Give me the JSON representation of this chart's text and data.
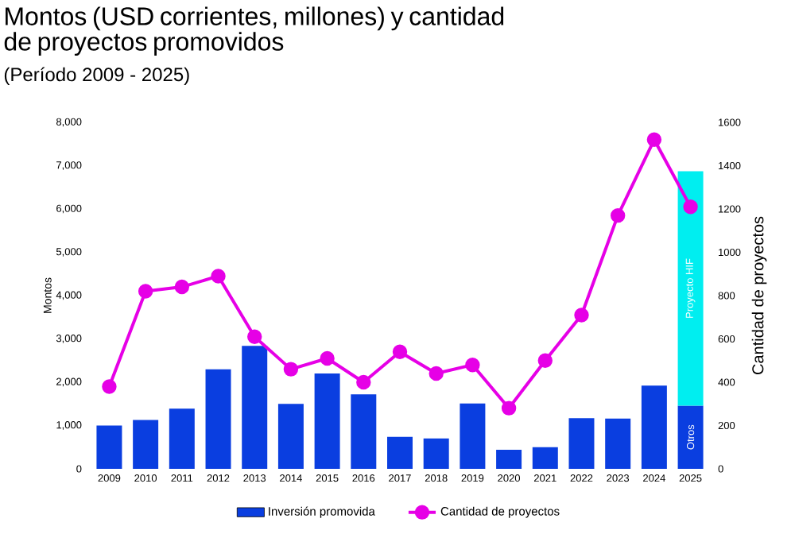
{
  "chart_data": {
    "type": "bar",
    "title": "Montos (USD corrientes, millones) y cantidad de proyectos promovidos",
    "subtitle": "(Período 2009 - 2025)",
    "ylabel": "Montos",
    "y2label": "Cantidad de proyectos",
    "categories": [
      "2009",
      "2010",
      "2011",
      "2012",
      "2013",
      "2014",
      "2015",
      "2016",
      "2017",
      "2018",
      "2019",
      "2020",
      "2021",
      "2022",
      "2023",
      "2024",
      "2025"
    ],
    "stacked": true,
    "series": [
      {
        "name": "Inversión promovida",
        "color": "#0a3ee0",
        "values": [
          1000,
          1130,
          1390,
          2300,
          2840,
          1500,
          2200,
          1720,
          740,
          700,
          1510,
          440,
          500,
          1170,
          1160,
          1920,
          1460
        ]
      },
      {
        "color": "#00eef0",
        "values": [
          null,
          null,
          null,
          null,
          null,
          null,
          null,
          null,
          null,
          null,
          null,
          null,
          null,
          null,
          null,
          null,
          5410
        ]
      },
      {
        "name": "Cantidad de proyectos",
        "type": "line",
        "axis": "y2",
        "color": "#e600e6",
        "marker": "circle",
        "values": [
          380,
          820,
          840,
          890,
          610,
          460,
          510,
          400,
          540,
          440,
          480,
          280,
          500,
          710,
          1170,
          1520,
          1210
        ]
      }
    ],
    "ylim": [
      0,
      8000
    ],
    "yticks": [
      {
        "value": 0,
        "label": "0"
      },
      {
        "value": 1000,
        "label": "1,000"
      },
      {
        "value": 2000,
        "label": "2,000"
      },
      {
        "value": 3000,
        "label": "3,000"
      },
      {
        "value": 4000,
        "label": "4,000"
      },
      {
        "value": 5000,
        "label": "5,000"
      },
      {
        "value": 6000,
        "label": "6,000"
      },
      {
        "value": 7000,
        "label": "7,000"
      },
      {
        "value": 8000,
        "label": "8,000"
      }
    ],
    "y2lim": [
      0,
      1600
    ],
    "y2ticks": [
      0,
      200,
      400,
      600,
      800,
      1000,
      1200,
      1400,
      1600
    ],
    "annotations": [
      "Otros",
      "Proyecto HIF"
    ],
    "legend": "bottom"
  }
}
